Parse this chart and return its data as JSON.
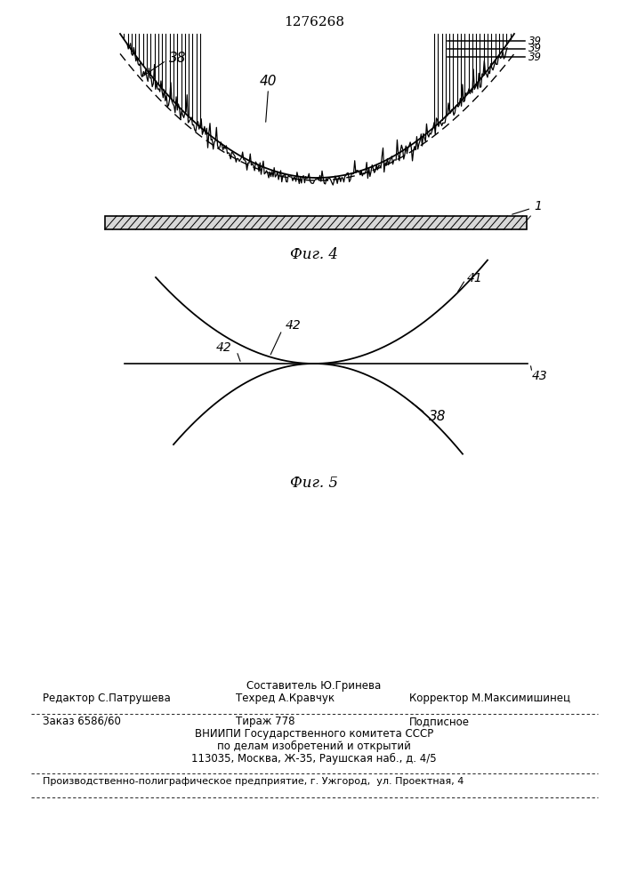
{
  "title_patent": "1276268",
  "fig4_caption": "Фиг. 4",
  "fig5_caption": "Фиг. 5",
  "label_38_fig4": "38",
  "label_39": "39",
  "label_40": "40",
  "label_1": "1",
  "label_41": "41",
  "label_42a": "42",
  "label_42b": "42",
  "label_43": "43",
  "label_38_fig5": "38",
  "footer_line1_center_top": "Составитель Ю.Гринева",
  "footer_line1_left": "Редактор С.Патрушева",
  "footer_line1_center2": "Техред А.Кравчук",
  "footer_line1_right": "Корректор М.Максимишинец",
  "footer_line2_left": "Заказ 6586/60",
  "footer_line2_center": "Тираж 778",
  "footer_line2_right": "Подписное",
  "footer_line3": "ВНИИПИ Государственного комитета СССР",
  "footer_line4": "по делам изобретений и открытий",
  "footer_line5": "113035, Москва, Ж-35, Раушская наб., д. 4/5",
  "footer_line6": "Производственно-полиграфическое предприятие, г. Ужгород,  ул. Проектная, 4",
  "bg_color": "#ffffff",
  "line_color": "#000000"
}
